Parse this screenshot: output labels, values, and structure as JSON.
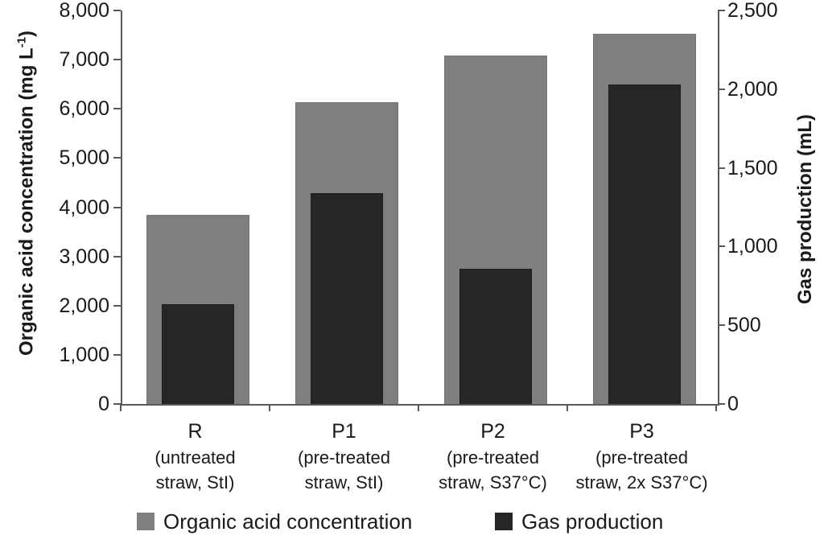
{
  "chart_data": {
    "type": "bar",
    "title": "",
    "categories": [
      {
        "code": "R",
        "sub1": "(untreated",
        "sub2": "straw, StI)"
      },
      {
        "code": "P1",
        "sub1": "(pre-treated",
        "sub2": "straw, StI)"
      },
      {
        "code": "P2",
        "sub1": "(pre-treated",
        "sub2": "straw, S37°C)"
      },
      {
        "code": "P3",
        "sub1": "(pre-treated",
        "sub2": "straw, 2x S37°C)"
      }
    ],
    "series": [
      {
        "name": "Organic acid concentration",
        "axis": "left",
        "unit": "mg L-1",
        "color": "#7f7f7f",
        "values": [
          3830,
          6120,
          7070,
          7510
        ]
      },
      {
        "name": "Gas production",
        "axis": "right",
        "unit": "mL",
        "color": "#262626",
        "values": [
          630,
          1335,
          855,
          2025
        ]
      }
    ],
    "left_axis": {
      "label": "Organic acid concentration (mg L⁻¹)",
      "min": 0,
      "max": 8000,
      "tick_step": 1000,
      "tick_labels": [
        "0",
        "1,000",
        "2,000",
        "3,000",
        "4,000",
        "5,000",
        "6,000",
        "7,000",
        "8,000"
      ]
    },
    "right_axis": {
      "label": "Gas production (mL)",
      "min": 0,
      "max": 2500,
      "tick_step": 500,
      "tick_labels": [
        "0",
        "500",
        "1,000",
        "1,500",
        "2,000",
        "2,500"
      ]
    },
    "grid": false,
    "legend_position": "bottom"
  },
  "labels": {
    "left_axis_main": "Organic acid concentration (mg L",
    "left_axis_sup": "-1",
    "left_axis_close": ")",
    "right_axis": "Gas production (mL)"
  },
  "legend": {
    "items": [
      {
        "label": "Organic acid concentration",
        "color": "#7f7f7f"
      },
      {
        "label": "Gas production",
        "color": "#262626"
      }
    ]
  },
  "colors": {
    "axis": "#595959",
    "text": "#1a1a1a",
    "background": "#ffffff"
  }
}
